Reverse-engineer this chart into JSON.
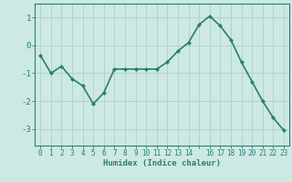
{
  "x": [
    0,
    1,
    2,
    3,
    4,
    5,
    6,
    7,
    8,
    9,
    10,
    11,
    12,
    13,
    14,
    15,
    16,
    17,
    18,
    19,
    20,
    21,
    22,
    23
  ],
  "y": [
    -0.35,
    -1.0,
    -0.75,
    -1.2,
    -1.45,
    -2.1,
    -1.7,
    -0.85,
    -0.85,
    -0.85,
    -0.85,
    -0.85,
    -0.6,
    -0.2,
    0.1,
    0.75,
    1.05,
    0.7,
    0.2,
    -0.6,
    -1.3,
    -2.0,
    -2.6,
    -3.05
  ],
  "line_color": "#2d7d6e",
  "marker": "D",
  "marker_size": 2.2,
  "bg_color": "#cce9e5",
  "grid_color": "#b0ceca",
  "xlabel": "Humidex (Indice chaleur)",
  "xtick_labels": [
    "0",
    "1",
    "2",
    "3",
    "4",
    "5",
    "6",
    "7",
    "8",
    "9",
    "10",
    "11",
    "12",
    "13",
    "14",
    "",
    "16",
    "17",
    "18",
    "19",
    "20",
    "21",
    "22",
    "23"
  ],
  "ytick_labels": [
    "-3",
    "-2",
    "-1",
    "0",
    "1"
  ],
  "yticks": [
    -3,
    -2,
    -1,
    0,
    1
  ],
  "ylim": [
    -3.6,
    1.5
  ],
  "xlim": [
    -0.5,
    23.5
  ],
  "tick_color": "#2d7d6e",
  "label_color": "#2d7d6e",
  "linewidth": 1.2
}
